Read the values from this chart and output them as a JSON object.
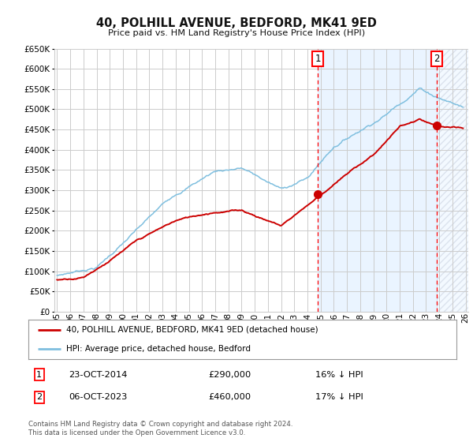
{
  "title": "40, POLHILL AVENUE, BEDFORD, MK41 9ED",
  "subtitle": "Price paid vs. HM Land Registry's House Price Index (HPI)",
  "ylim": [
    0,
    650000
  ],
  "yticks": [
    0,
    50000,
    100000,
    150000,
    200000,
    250000,
    300000,
    350000,
    400000,
    450000,
    500000,
    550000,
    600000,
    650000
  ],
  "xmin_year": 1995,
  "xmax_year": 2026,
  "xtick_years": [
    1995,
    1996,
    1997,
    1998,
    1999,
    2000,
    2001,
    2002,
    2003,
    2004,
    2005,
    2006,
    2007,
    2008,
    2009,
    2010,
    2011,
    2012,
    2013,
    2014,
    2015,
    2016,
    2017,
    2018,
    2019,
    2020,
    2021,
    2022,
    2023,
    2024,
    2025,
    2026
  ],
  "hpi_color": "#7fbfdf",
  "price_color": "#cc0000",
  "dot_color": "#cc0000",
  "vline1_x": 2014.8,
  "vline2_x": 2023.8,
  "sale1_x": 2014.8,
  "sale1_y": 290000,
  "sale2_x": 2023.8,
  "sale2_y": 460000,
  "legend_label1": "40, POLHILL AVENUE, BEDFORD, MK41 9ED (detached house)",
  "legend_label2": "HPI: Average price, detached house, Bedford",
  "note1_label": "1",
  "note1_date": "23-OCT-2014",
  "note1_price": "£290,000",
  "note1_hpi": "16% ↓ HPI",
  "note2_label": "2",
  "note2_date": "06-OCT-2023",
  "note2_price": "£460,000",
  "note2_hpi": "17% ↓ HPI",
  "footer": "Contains HM Land Registry data © Crown copyright and database right 2024.\nThis data is licensed under the Open Government Licence v3.0.",
  "bg_color": "#ffffff",
  "grid_color": "#cccccc",
  "highlight_bg": "#ddeeff",
  "hatch_color": "#b0b8cc"
}
